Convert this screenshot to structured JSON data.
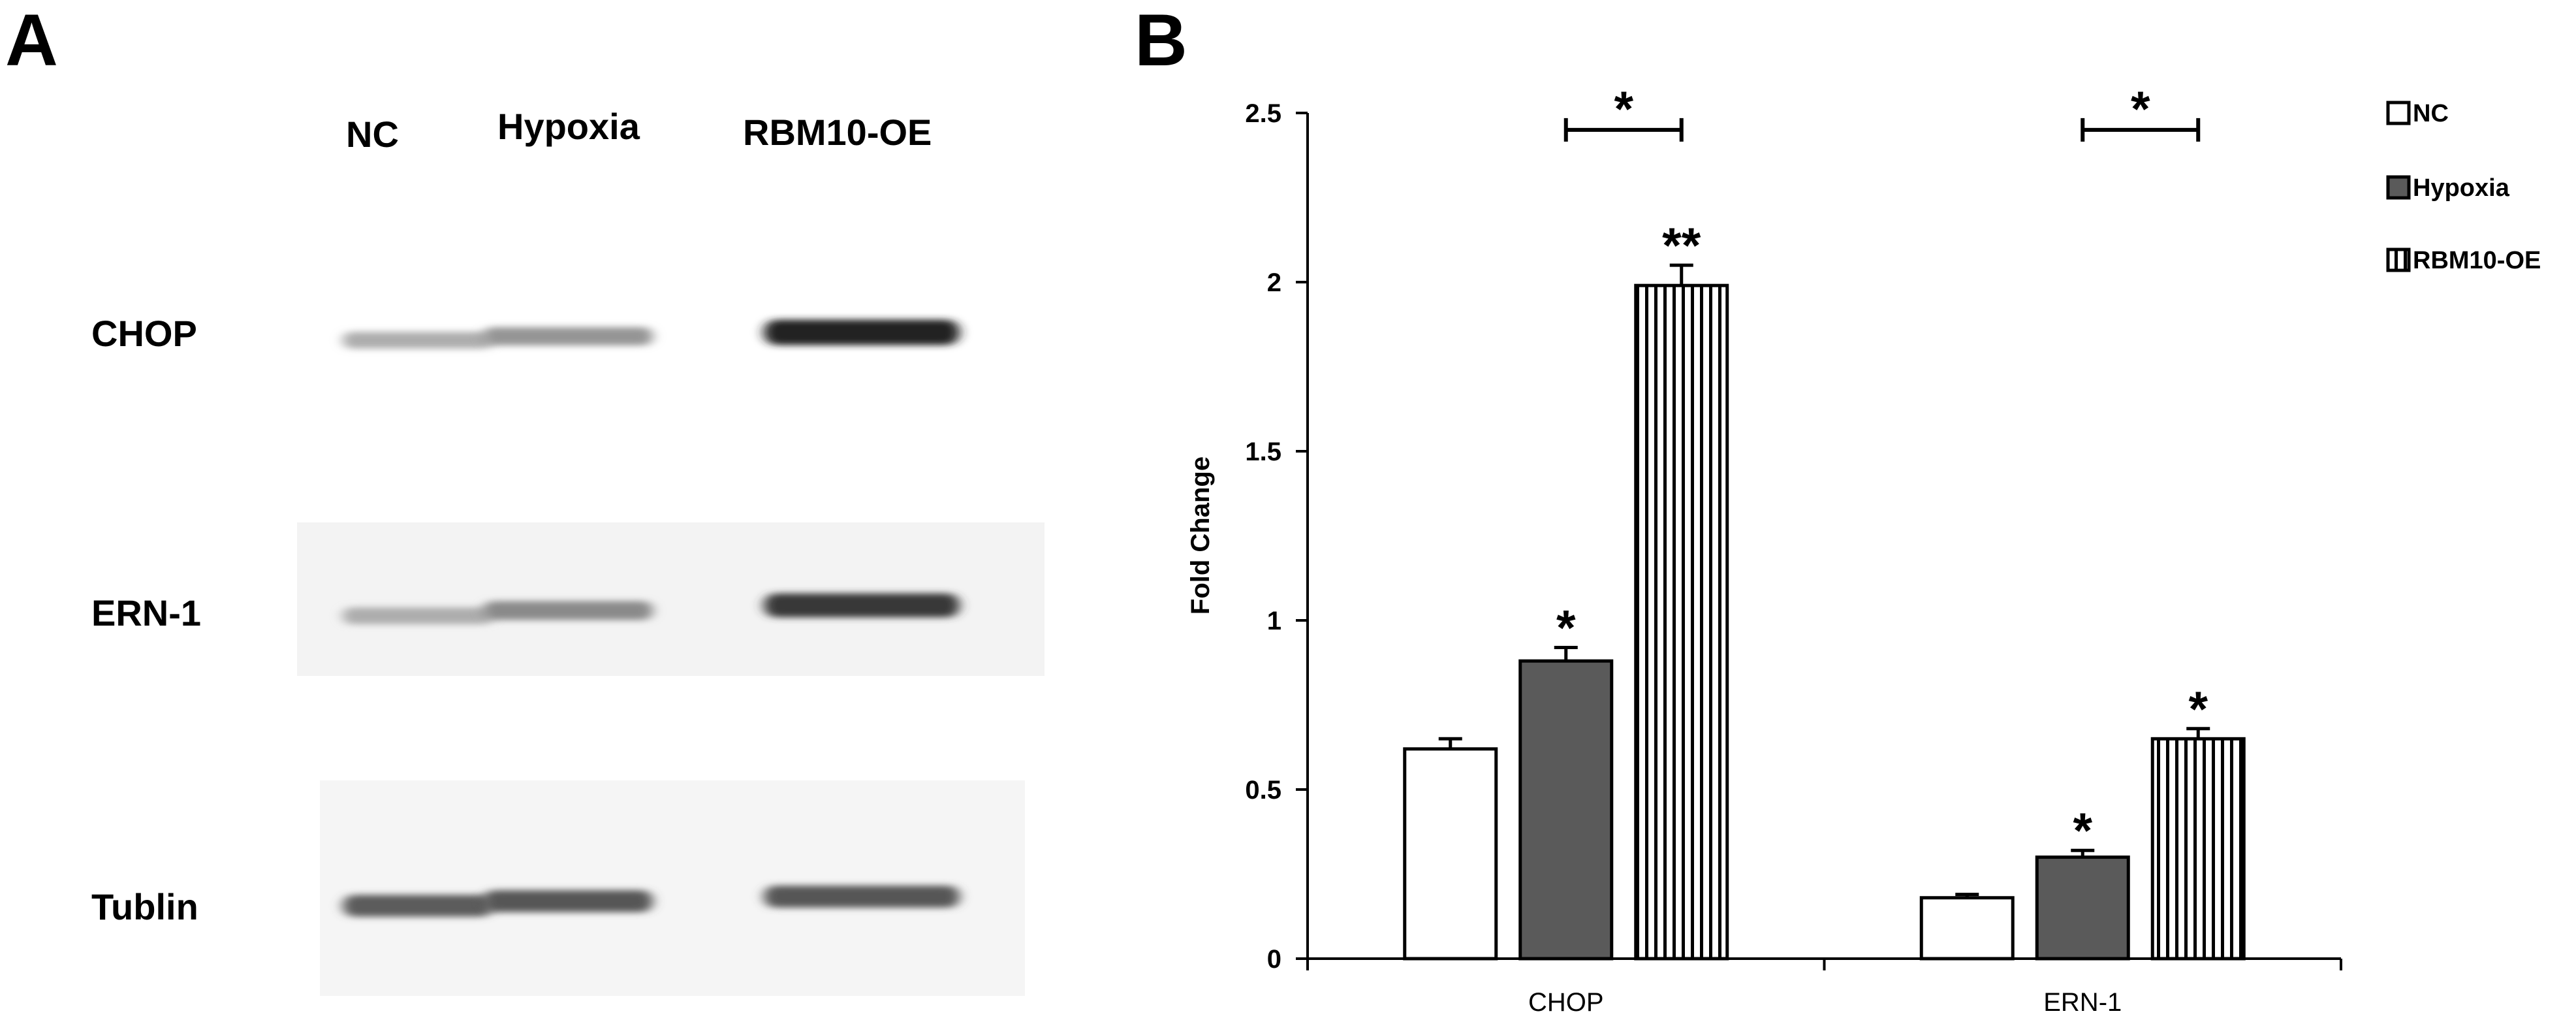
{
  "panels": {
    "a_label": "A",
    "b_label": "B"
  },
  "blot": {
    "lanes": [
      "NC",
      "Hypoxia",
      "RBM10-OE"
    ],
    "rows": [
      {
        "label": "CHOP",
        "intensity": [
          0.35,
          0.45,
          0.95
        ]
      },
      {
        "label": "ERN-1",
        "intensity": [
          0.35,
          0.5,
          0.85
        ]
      },
      {
        "label": "Tublin",
        "intensity": [
          0.7,
          0.72,
          0.72
        ]
      }
    ]
  },
  "chart_data": {
    "type": "bar",
    "categories": [
      "CHOP",
      "ERN-1"
    ],
    "series": [
      {
        "name": "NC",
        "values": [
          0.62,
          0.18
        ],
        "errors": [
          0.03,
          0.01
        ],
        "fill": "white"
      },
      {
        "name": "Hypoxia",
        "values": [
          0.88,
          0.3
        ],
        "errors": [
          0.04,
          0.02
        ],
        "fill": "#5a5a5a"
      },
      {
        "name": "RBM10-OE",
        "values": [
          1.99,
          0.65
        ],
        "errors": [
          0.06,
          0.03
        ],
        "fill": "stripes"
      }
    ],
    "significance": [
      {
        "category": 0,
        "series": 1,
        "mark": "*"
      },
      {
        "category": 0,
        "series": 2,
        "mark": "**"
      },
      {
        "category": 1,
        "series": 1,
        "mark": "*"
      },
      {
        "category": 1,
        "series": 2,
        "mark": "*"
      }
    ],
    "brackets": [
      {
        "category": 0,
        "from_series": 1,
        "to_series": 2,
        "y": 2.45,
        "mark": "*"
      },
      {
        "category": 1,
        "from_series": 1,
        "to_series": 2,
        "y": 2.45,
        "mark": "*"
      }
    ],
    "yticks": [
      "0",
      "0.5",
      "1",
      "1.5",
      "2",
      "2.5"
    ],
    "ylim": [
      0,
      2.5
    ],
    "ylabel": "Fold Change",
    "xlabel": "",
    "title": "",
    "legend_position": "top-right",
    "grid": false
  }
}
